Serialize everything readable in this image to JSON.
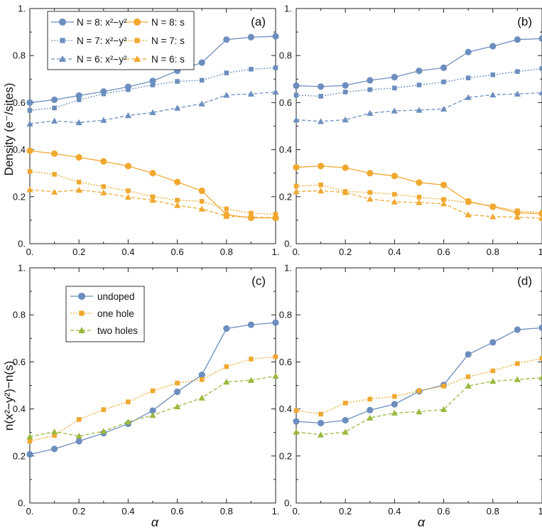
{
  "colors": {
    "blue": "#6c8ebf",
    "orange": "#f0a830",
    "green": "#9ab83e"
  },
  "labels": {
    "top_ylabel": "Density (e⁻/sites)",
    "bottom_ylabel": "n(x²−y²)−n(s)",
    "xlabel": "α"
  },
  "x_tick_labels": [
    "0.",
    "0.2",
    "0.4",
    "0.6",
    "0.8",
    "1."
  ],
  "y_tick_labels": [
    "0.",
    "0.2",
    "0.4",
    "0.6",
    "0.8",
    "1."
  ],
  "chart_data": [
    {
      "panel": "(a)",
      "type": "line",
      "xlim": [
        0,
        1
      ],
      "ylim": [
        0,
        1
      ],
      "legend_position": "top-left",
      "x": [
        0,
        0.1,
        0.2,
        0.3,
        0.4,
        0.5,
        0.6,
        0.7,
        0.8,
        0.9,
        1.0
      ],
      "series": [
        {
          "name": "N = 8: x²−y²",
          "color": "blue",
          "marker": "circle",
          "style": "solid",
          "values": [
            0.6,
            0.612,
            0.63,
            0.647,
            0.667,
            0.692,
            0.735,
            0.77,
            0.868,
            0.878,
            0.882
          ]
        },
        {
          "name": "N = 7: x²−y²",
          "color": "blue",
          "marker": "square",
          "style": "dotted",
          "values": [
            0.567,
            0.577,
            0.612,
            0.637,
            0.655,
            0.675,
            0.69,
            0.695,
            0.726,
            0.742,
            0.748
          ]
        },
        {
          "name": "N = 6: x²−y²",
          "color": "blue",
          "marker": "triangle",
          "style": "dashed",
          "values": [
            0.51,
            0.522,
            0.515,
            0.525,
            0.545,
            0.558,
            0.577,
            0.595,
            0.632,
            0.637,
            0.645
          ]
        },
        {
          "name": "N = 8: s",
          "color": "orange",
          "marker": "circle",
          "style": "solid",
          "values": [
            0.395,
            0.383,
            0.367,
            0.35,
            0.33,
            0.3,
            0.262,
            0.225,
            0.123,
            0.11,
            0.11
          ]
        },
        {
          "name": "N = 7: s",
          "color": "orange",
          "marker": "square",
          "style": "dotted",
          "values": [
            0.307,
            0.295,
            0.262,
            0.243,
            0.225,
            0.2,
            0.185,
            0.18,
            0.148,
            0.13,
            0.125
          ]
        },
        {
          "name": "N = 6: s",
          "color": "orange",
          "marker": "triangle",
          "style": "dashed",
          "values": [
            0.23,
            0.22,
            0.228,
            0.217,
            0.198,
            0.185,
            0.163,
            0.148,
            0.117,
            0.113,
            0.11
          ]
        }
      ]
    },
    {
      "panel": "(b)",
      "type": "line",
      "xlim": [
        0,
        1
      ],
      "ylim": [
        0,
        1
      ],
      "x": [
        0,
        0.1,
        0.2,
        0.3,
        0.4,
        0.5,
        0.6,
        0.7,
        0.8,
        0.9,
        1.0
      ],
      "series": [
        {
          "name": "N = 8: x²−y²",
          "color": "blue",
          "marker": "circle",
          "style": "solid",
          "values": [
            0.672,
            0.668,
            0.673,
            0.695,
            0.708,
            0.735,
            0.748,
            0.815,
            0.84,
            0.868,
            0.872
          ]
        },
        {
          "name": "N = 7: x²−y²",
          "color": "blue",
          "marker": "square",
          "style": "dotted",
          "values": [
            0.632,
            0.627,
            0.645,
            0.655,
            0.662,
            0.675,
            0.688,
            0.705,
            0.718,
            0.732,
            0.745
          ]
        },
        {
          "name": "N = 6: x²−y²",
          "color": "blue",
          "marker": "triangle",
          "style": "dashed",
          "values": [
            0.527,
            0.52,
            0.527,
            0.555,
            0.565,
            0.568,
            0.573,
            0.622,
            0.633,
            0.637,
            0.642
          ]
        },
        {
          "name": "N = 8: s",
          "color": "orange",
          "marker": "circle",
          "style": "solid",
          "values": [
            0.325,
            0.33,
            0.323,
            0.3,
            0.288,
            0.26,
            0.25,
            0.18,
            0.157,
            0.132,
            0.127
          ]
        },
        {
          "name": "N = 7: s",
          "color": "orange",
          "marker": "square",
          "style": "dotted",
          "values": [
            0.245,
            0.25,
            0.222,
            0.218,
            0.21,
            0.198,
            0.188,
            0.175,
            0.16,
            0.14,
            0.132
          ]
        },
        {
          "name": "N = 6: s",
          "color": "orange",
          "marker": "triangle",
          "style": "dashed",
          "values": [
            0.222,
            0.225,
            0.218,
            0.19,
            0.178,
            0.175,
            0.17,
            0.123,
            0.115,
            0.113,
            0.108
          ]
        }
      ]
    },
    {
      "panel": "(c)",
      "type": "line",
      "xlim": [
        0,
        1
      ],
      "ylim": [
        0,
        1
      ],
      "legend_position": "upper-left",
      "x": [
        0,
        0.1,
        0.2,
        0.3,
        0.4,
        0.5,
        0.6,
        0.7,
        0.8,
        0.9,
        1.0
      ],
      "series": [
        {
          "name": "undoped",
          "color": "blue",
          "marker": "circle",
          "style": "solid",
          "values": [
            0.207,
            0.23,
            0.263,
            0.297,
            0.337,
            0.393,
            0.473,
            0.545,
            0.742,
            0.758,
            0.767
          ]
        },
        {
          "name": "one hole",
          "color": "orange",
          "marker": "square",
          "style": "dotted",
          "values": [
            0.263,
            0.287,
            0.355,
            0.397,
            0.43,
            0.477,
            0.51,
            0.525,
            0.58,
            0.612,
            0.622
          ]
        },
        {
          "name": "two holes",
          "color": "green",
          "marker": "triangle",
          "style": "dashed",
          "values": [
            0.282,
            0.303,
            0.285,
            0.305,
            0.345,
            0.373,
            0.41,
            0.447,
            0.515,
            0.522,
            0.54
          ]
        }
      ]
    },
    {
      "panel": "(d)",
      "type": "line",
      "xlim": [
        0,
        1
      ],
      "ylim": [
        0,
        1
      ],
      "x": [
        0,
        0.1,
        0.2,
        0.3,
        0.4,
        0.5,
        0.6,
        0.7,
        0.8,
        0.9,
        1.0
      ],
      "series": [
        {
          "name": "undoped",
          "color": "blue",
          "marker": "circle",
          "style": "solid",
          "values": [
            0.347,
            0.34,
            0.352,
            0.395,
            0.42,
            0.475,
            0.502,
            0.632,
            0.683,
            0.737,
            0.745
          ]
        },
        {
          "name": "one hole",
          "color": "orange",
          "marker": "square",
          "style": "dotted",
          "values": [
            0.393,
            0.378,
            0.425,
            0.442,
            0.453,
            0.477,
            0.497,
            0.537,
            0.562,
            0.593,
            0.615
          ]
        },
        {
          "name": "two holes",
          "color": "green",
          "marker": "triangle",
          "style": "dashed",
          "values": [
            0.302,
            0.29,
            0.302,
            0.362,
            0.383,
            0.388,
            0.398,
            0.498,
            0.518,
            0.525,
            0.533
          ]
        }
      ]
    }
  ]
}
